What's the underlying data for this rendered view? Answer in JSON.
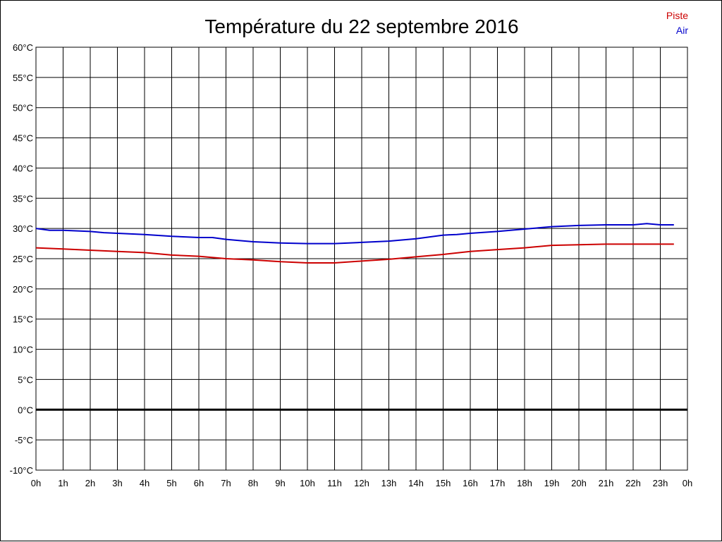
{
  "chart_data": {
    "type": "line",
    "title": "Température du 22 septembre 2016",
    "x_tick_labels": [
      "0h",
      "1h",
      "2h",
      "3h",
      "4h",
      "5h",
      "6h",
      "7h",
      "8h",
      "9h",
      "10h",
      "11h",
      "12h",
      "13h",
      "14h",
      "15h",
      "16h",
      "17h",
      "18h",
      "19h",
      "20h",
      "21h",
      "22h",
      "23h",
      "0h"
    ],
    "y_tick_labels": [
      "-10°C",
      "-5°C",
      "0°C",
      "5°C",
      "10°C",
      "15°C",
      "20°C",
      "25°C",
      "30°C",
      "35°C",
      "40°C",
      "45°C",
      "50°C",
      "55°C",
      "60°C"
    ],
    "xlim": [
      0,
      24
    ],
    "ylim": [
      -10,
      60
    ],
    "grid": true,
    "zero_line": true,
    "legend_position": "top-right",
    "series": [
      {
        "name": "Piste",
        "color": "#cc0000",
        "x": [
          0,
          1,
          2,
          3,
          4,
          5,
          6,
          7,
          8,
          9,
          10,
          11,
          12,
          13,
          14,
          15,
          16,
          17,
          18,
          19,
          20,
          21,
          22,
          23,
          23.5
        ],
        "y": [
          26.8,
          26.6,
          26.4,
          26.2,
          26.0,
          25.6,
          25.4,
          25.0,
          24.8,
          24.5,
          24.3,
          24.3,
          24.6,
          24.9,
          25.3,
          25.7,
          26.2,
          26.5,
          26.8,
          27.2,
          27.3,
          27.4,
          27.4,
          27.4,
          27.4
        ]
      },
      {
        "name": "Air",
        "color": "#0000cc",
        "x": [
          0,
          0.5,
          1,
          2,
          2.5,
          3,
          4,
          5,
          6,
          6.5,
          7,
          8,
          9,
          10,
          11,
          12,
          13,
          14,
          15,
          15.5,
          16,
          17,
          18,
          19,
          20,
          21,
          22,
          22.5,
          23,
          23.5
        ],
        "y": [
          30.0,
          29.7,
          29.7,
          29.5,
          29.3,
          29.2,
          29.0,
          28.7,
          28.5,
          28.5,
          28.2,
          27.8,
          27.6,
          27.5,
          27.5,
          27.7,
          27.9,
          28.3,
          28.9,
          29.0,
          29.2,
          29.5,
          29.9,
          30.3,
          30.5,
          30.6,
          30.6,
          30.8,
          30.6,
          30.6
        ]
      }
    ]
  }
}
